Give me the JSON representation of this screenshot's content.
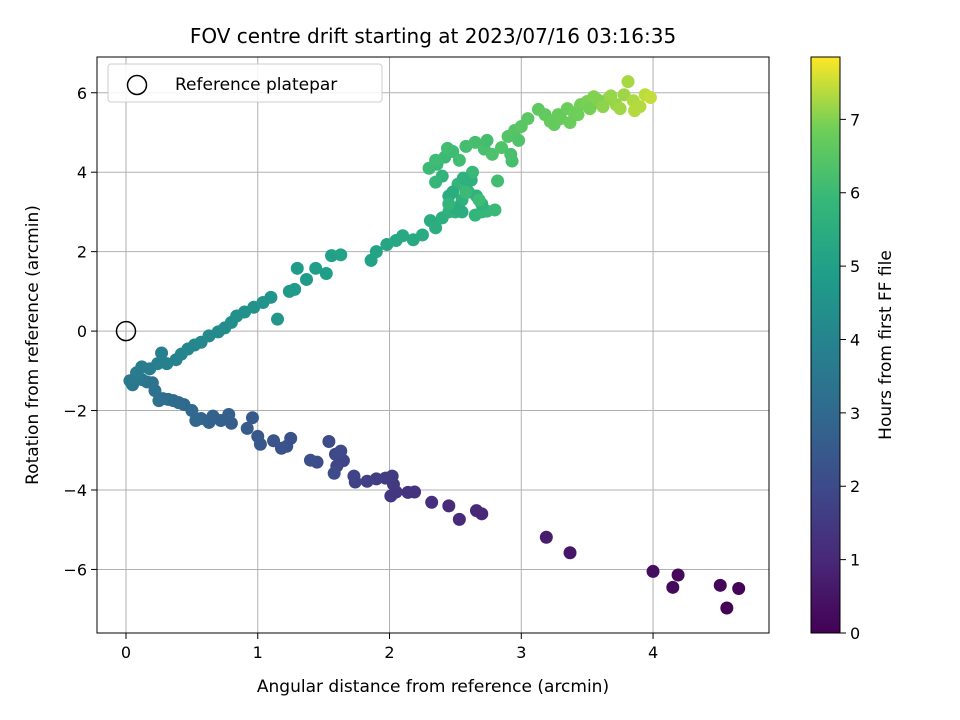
{
  "chart_data": {
    "type": "scatter",
    "title": "FOV centre drift starting at 2023/07/16 03:16:35",
    "xlabel": "Angular distance from reference (arcmin)",
    "ylabel": "Rotation from reference (arcmin)",
    "colorbar_label": "Hours from first FF file",
    "xlim": [
      -0.22,
      4.88
    ],
    "ylim": [
      -7.6,
      6.9
    ],
    "xticks": [
      "0",
      "1",
      "2",
      "3",
      "4"
    ],
    "yticks": [
      "−6",
      "−4",
      "−2",
      "0",
      "2",
      "4",
      "6"
    ],
    "colorbar_range": [
      0,
      7.85
    ],
    "colorbar_ticks": [
      "0",
      "1",
      "2",
      "3",
      "4",
      "5",
      "6",
      "7"
    ],
    "colormap": "viridis",
    "grid": true,
    "legend": {
      "placement": "top-left",
      "label": "Reference platepar",
      "marker": "open-circle"
    },
    "reference_point": {
      "x": 0,
      "y": 0
    },
    "points": [
      [
        4.56,
        -6.97,
        0.02
      ],
      [
        4.65,
        -6.48,
        0.08
      ],
      [
        4.51,
        -6.4,
        0.12
      ],
      [
        4.19,
        -6.14,
        0.18
      ],
      [
        4.15,
        -6.45,
        0.22
      ],
      [
        4.0,
        -6.05,
        0.3
      ],
      [
        3.37,
        -5.58,
        0.55
      ],
      [
        3.19,
        -5.19,
        0.7
      ],
      [
        2.7,
        -4.6,
        0.95
      ],
      [
        2.66,
        -4.52,
        1.0
      ],
      [
        2.53,
        -4.74,
        1.05
      ],
      [
        2.45,
        -4.4,
        1.1
      ],
      [
        2.32,
        -4.31,
        1.2
      ],
      [
        2.19,
        -4.05,
        1.3
      ],
      [
        2.14,
        -4.06,
        1.35
      ],
      [
        2.05,
        -4.05,
        1.4
      ],
      [
        2.01,
        -4.15,
        1.45
      ],
      [
        2.03,
        -3.86,
        1.5
      ],
      [
        2.02,
        -3.65,
        1.55
      ],
      [
        1.97,
        -3.7,
        1.6
      ],
      [
        1.9,
        -3.72,
        1.65
      ],
      [
        1.83,
        -3.78,
        1.7
      ],
      [
        1.74,
        -3.8,
        1.75
      ],
      [
        1.73,
        -3.65,
        1.8
      ],
      [
        1.65,
        -3.26,
        1.85
      ],
      [
        1.6,
        -3.4,
        1.9
      ],
      [
        1.59,
        -3.1,
        1.95
      ],
      [
        1.63,
        -3.02,
        2.0
      ],
      [
        1.58,
        -3.58,
        2.02
      ],
      [
        1.54,
        -2.78,
        2.06
      ],
      [
        1.45,
        -3.3,
        2.1
      ],
      [
        1.4,
        -3.25,
        2.15
      ],
      [
        1.25,
        -2.7,
        2.2
      ],
      [
        1.22,
        -2.9,
        2.25
      ],
      [
        1.18,
        -2.95,
        2.3
      ],
      [
        1.12,
        -2.76,
        2.35
      ],
      [
        1.02,
        -2.85,
        2.4
      ],
      [
        1.0,
        -2.65,
        2.45
      ],
      [
        0.96,
        -2.18,
        2.5
      ],
      [
        0.92,
        -2.45,
        2.55
      ],
      [
        0.8,
        -2.32,
        2.6
      ],
      [
        0.78,
        -2.1,
        2.65
      ],
      [
        0.72,
        -2.25,
        2.7
      ],
      [
        0.66,
        -2.14,
        2.75
      ],
      [
        0.63,
        -2.3,
        2.8
      ],
      [
        0.57,
        -2.2,
        2.85
      ],
      [
        0.53,
        -2.25,
        2.9
      ],
      [
        0.5,
        -2.0,
        2.95
      ],
      [
        0.44,
        -1.85,
        3.0
      ],
      [
        0.4,
        -1.8,
        3.05
      ],
      [
        0.36,
        -1.75,
        3.1
      ],
      [
        0.32,
        -1.72,
        3.15
      ],
      [
        0.28,
        -1.7,
        3.2
      ],
      [
        0.25,
        -1.75,
        3.25
      ],
      [
        0.22,
        -1.5,
        3.3
      ],
      [
        0.2,
        -1.3,
        3.35
      ],
      [
        0.16,
        -1.28,
        3.4
      ],
      [
        0.12,
        -1.22,
        3.45
      ],
      [
        0.09,
        -1.15,
        3.5
      ],
      [
        0.05,
        -1.35,
        3.55
      ],
      [
        0.03,
        -1.25,
        3.6
      ],
      [
        0.08,
        -1.05,
        3.65
      ],
      [
        0.12,
        -0.9,
        3.7
      ],
      [
        0.18,
        -0.95,
        3.75
      ],
      [
        0.24,
        -0.82,
        3.8
      ],
      [
        0.27,
        -0.55,
        3.85
      ],
      [
        0.31,
        -0.82,
        3.9
      ],
      [
        0.38,
        -0.72,
        3.95
      ],
      [
        0.42,
        -0.58,
        4.0
      ],
      [
        0.47,
        -0.45,
        4.05
      ],
      [
        0.52,
        -0.35,
        4.1
      ],
      [
        0.57,
        -0.28,
        4.15
      ],
      [
        0.63,
        -0.12,
        4.2
      ],
      [
        0.7,
        -0.02,
        4.25
      ],
      [
        0.75,
        0.08,
        4.3
      ],
      [
        0.8,
        0.22,
        4.35
      ],
      [
        0.84,
        0.38,
        4.4
      ],
      [
        0.9,
        0.48,
        4.45
      ],
      [
        0.97,
        0.6,
        4.5
      ],
      [
        1.04,
        0.72,
        4.55
      ],
      [
        1.1,
        0.85,
        4.6
      ],
      [
        1.15,
        0.3,
        4.65
      ],
      [
        1.24,
        1.0,
        4.7
      ],
      [
        1.28,
        1.05,
        4.75
      ],
      [
        1.3,
        1.58,
        4.8
      ],
      [
        1.37,
        1.3,
        4.85
      ],
      [
        1.44,
        1.58,
        4.9
      ],
      [
        1.52,
        1.45,
        4.95
      ],
      [
        1.56,
        1.9,
        5.0
      ],
      [
        1.63,
        1.92,
        5.05
      ],
      [
        1.86,
        1.78,
        5.1
      ],
      [
        1.9,
        2.0,
        5.15
      ],
      [
        1.98,
        2.18,
        5.2
      ],
      [
        2.05,
        2.28,
        5.25
      ],
      [
        2.1,
        2.4,
        5.3
      ],
      [
        2.18,
        2.3,
        5.35
      ],
      [
        2.25,
        2.42,
        5.4
      ],
      [
        2.31,
        2.78,
        5.45
      ],
      [
        2.35,
        2.6,
        5.5
      ],
      [
        2.4,
        2.85,
        5.55
      ],
      [
        2.45,
        3.0,
        5.6
      ],
      [
        2.5,
        3.0,
        5.65
      ],
      [
        2.55,
        3.3,
        5.7
      ],
      [
        2.6,
        3.5,
        5.75
      ],
      [
        2.65,
        2.92,
        5.8
      ],
      [
        2.7,
        3.0,
        5.85
      ],
      [
        2.74,
        3.02,
        5.9
      ],
      [
        2.8,
        3.05,
        5.95
      ],
      [
        2.45,
        3.4,
        5.4
      ],
      [
        2.5,
        3.1,
        5.45
      ],
      [
        2.55,
        3.0,
        5.5
      ],
      [
        2.58,
        3.6,
        5.55
      ],
      [
        2.62,
        3.8,
        5.6
      ],
      [
        2.66,
        3.4,
        5.65
      ],
      [
        2.7,
        3.2,
        5.7
      ],
      [
        2.4,
        3.9,
        5.75
      ],
      [
        2.45,
        3.2,
        5.8
      ],
      [
        2.52,
        3.7,
        5.85
      ],
      [
        2.35,
        3.75,
        5.9
      ],
      [
        2.63,
        4.0,
        5.95
      ],
      [
        2.58,
        3.5,
        6.0
      ],
      [
        2.68,
        3.3,
        6.05
      ],
      [
        2.48,
        3.5,
        5.5
      ],
      [
        2.56,
        3.85,
        5.6
      ],
      [
        2.36,
        4.2,
        5.95
      ],
      [
        2.42,
        4.38,
        6.0
      ],
      [
        2.48,
        4.52,
        6.05
      ],
      [
        2.53,
        4.3,
        6.1
      ],
      [
        2.58,
        4.65,
        6.15
      ],
      [
        2.65,
        4.75,
        6.2
      ],
      [
        2.72,
        4.58,
        6.25
      ],
      [
        2.78,
        4.45,
        6.3
      ],
      [
        2.85,
        4.62,
        6.35
      ],
      [
        2.9,
        4.9,
        6.4
      ],
      [
        2.95,
        5.05,
        6.45
      ],
      [
        3.0,
        5.15,
        6.5
      ],
      [
        3.05,
        5.35,
        6.55
      ],
      [
        3.13,
        5.58,
        6.6
      ],
      [
        3.18,
        5.45,
        6.65
      ],
      [
        3.22,
        5.28,
        6.7
      ],
      [
        3.28,
        5.45,
        6.75
      ],
      [
        3.35,
        5.6,
        6.8
      ],
      [
        3.4,
        5.5,
        6.85
      ],
      [
        3.45,
        5.7,
        6.9
      ],
      [
        3.5,
        5.78,
        6.95
      ],
      [
        3.55,
        5.9,
        7.0
      ],
      [
        3.6,
        5.72,
        7.05
      ],
      [
        3.66,
        5.85,
        7.1
      ],
      [
        3.72,
        5.7,
        7.15
      ],
      [
        3.78,
        5.95,
        7.2
      ],
      [
        3.81,
        6.28,
        7.25
      ],
      [
        3.85,
        5.8,
        7.3
      ],
      [
        3.9,
        5.65,
        7.35
      ],
      [
        3.94,
        5.95,
        7.4
      ],
      [
        3.98,
        5.88,
        7.45
      ],
      [
        3.25,
        5.2,
        6.7
      ],
      [
        3.3,
        5.35,
        6.75
      ],
      [
        3.37,
        5.25,
        6.8
      ],
      [
        3.43,
        5.45,
        6.85
      ],
      [
        3.52,
        5.6,
        6.92
      ],
      [
        3.58,
        5.82,
        7.0
      ],
      [
        3.62,
        5.65,
        7.08
      ],
      [
        3.68,
        5.92,
        7.15
      ],
      [
        3.75,
        5.6,
        7.22
      ],
      [
        3.86,
        5.55,
        7.35
      ],
      [
        2.93,
        4.28,
        6.2
      ],
      [
        2.92,
        4.45,
        6.25
      ],
      [
        2.98,
        4.8,
        6.35
      ],
      [
        2.82,
        3.78,
        6.1
      ],
      [
        2.74,
        4.8,
        6.15
      ],
      [
        2.3,
        4.1,
        6.0
      ],
      [
        2.35,
        4.3,
        6.05
      ],
      [
        2.44,
        4.6,
        6.1
      ]
    ]
  }
}
